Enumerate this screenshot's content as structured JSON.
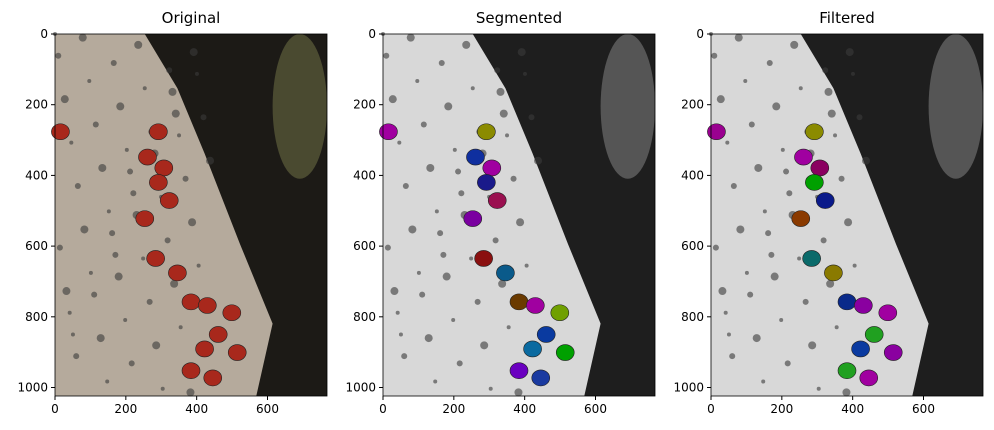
{
  "panels": [
    {
      "title": "Original",
      "xlim": [
        0,
        768
      ],
      "ylim": [
        1024,
        0
      ],
      "xticks": [
        0,
        200,
        400,
        600
      ],
      "yticks": [
        0,
        200,
        400,
        600,
        800,
        1000
      ]
    },
    {
      "title": "Segmented",
      "xlim": [
        0,
        768
      ],
      "ylim": [
        1024,
        0
      ],
      "xticks": [
        0,
        200,
        400,
        600
      ],
      "yticks": [
        0,
        200,
        400,
        600,
        800,
        1000
      ]
    },
    {
      "title": "Filtered",
      "xlim": [
        0,
        768
      ],
      "ylim": [
        1024,
        0
      ],
      "xticks": [
        0,
        200,
        400,
        600
      ],
      "yticks": [
        0,
        200,
        400,
        600,
        800,
        1000
      ]
    }
  ]
}
